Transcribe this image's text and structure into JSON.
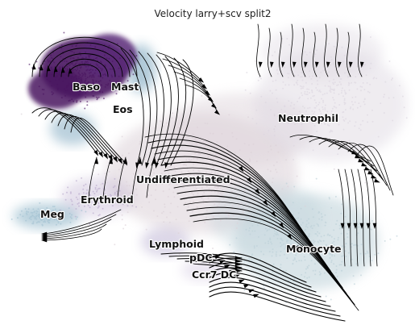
{
  "chart_data": {
    "type": "scatter",
    "title": "Velocity larry+scv split2",
    "embedding": "UMAP with RNA velocity streamlines",
    "grid": false,
    "legend": "on data",
    "clusters": [
      {
        "name": "Baso",
        "color": "#4a1560"
      },
      {
        "name": "Mast",
        "color": "#5a2a78"
      },
      {
        "name": "Eos",
        "color": "#8fb3c8"
      },
      {
        "name": "Neutrophil",
        "color": "#dcd6e0"
      },
      {
        "name": "Undifferentiated",
        "color": "#dcd1d8"
      },
      {
        "name": "Erythroid",
        "color": "#b9a9cc"
      },
      {
        "name": "Meg",
        "color": "#a3c2d2"
      },
      {
        "name": "Lymphoid",
        "color": "#9d8fc0"
      },
      {
        "name": "pDC",
        "color": "#b7a6cf"
      },
      {
        "name": "Ccr7 DC",
        "color": "#c7b9d9"
      },
      {
        "name": "Monocyte",
        "color": "#bcd0d8"
      }
    ]
  }
}
